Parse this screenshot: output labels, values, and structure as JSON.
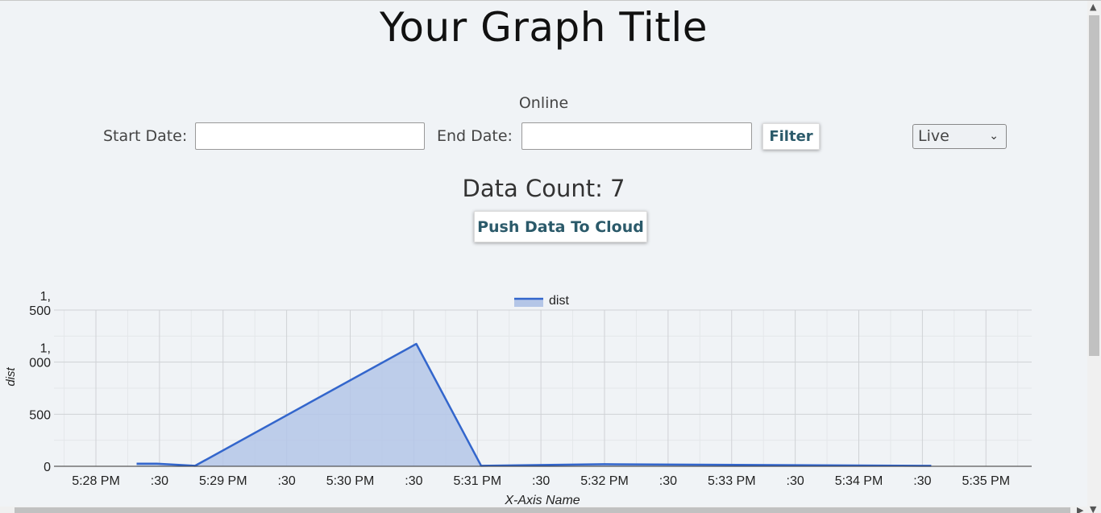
{
  "page": {
    "title": "Your Graph Title",
    "status": "Online"
  },
  "filter": {
    "start_label": "Start Date:",
    "start_value": "",
    "end_label": "End Date:",
    "end_value": "",
    "filter_label": "Filter",
    "mode_selected": "Live"
  },
  "summary": {
    "data_count": "Data Count: 7",
    "push_label": "Push Data To Cloud"
  },
  "colors": {
    "series_line": "#3366cc",
    "series_fill": "#b4c6e7"
  },
  "icons": {
    "select_arrow": "chevron-down-icon",
    "scroll_up": "caret-up-icon",
    "scroll_down": "caret-down-icon",
    "scroll_right": "caret-right-icon"
  },
  "chart_data": {
    "type": "area",
    "title": "",
    "xlabel": "X-Axis Name",
    "ylabel": "dist",
    "legend_position": "top",
    "grid": true,
    "x_start": "5:28 PM",
    "x_end": "5:35 PM",
    "xlim_minutes": [
      0,
      7.7
    ],
    "ylim": [
      0,
      1500
    ],
    "ytick_values": [
      0,
      500,
      1000,
      1500
    ],
    "ytick_labels": [
      [
        "0"
      ],
      [
        "500"
      ],
      [
        "1,",
        "000"
      ],
      [
        "1,",
        "500"
      ]
    ],
    "xtick_labels": [
      "5:28 PM",
      ":30",
      "5:29 PM",
      ":30",
      "5:30 PM",
      ":30",
      "5:31 PM",
      ":30",
      "5:32 PM",
      ":30",
      "5:33 PM",
      ":30",
      "5:34 PM",
      ":30",
      "5:35 PM"
    ],
    "xtick_minutes": [
      0,
      0.5,
      1,
      1.5,
      2,
      2.5,
      3,
      3.5,
      4,
      4.5,
      5,
      5.5,
      6,
      6.5,
      7
    ],
    "series": [
      {
        "name": "dist",
        "points": [
          {
            "x": "5:28:19 PM",
            "minutes": 0.32,
            "y": 25
          },
          {
            "x": "5:28:29 PM",
            "minutes": 0.48,
            "y": 25
          },
          {
            "x": "5:28:47 PM",
            "minutes": 0.78,
            "y": 5
          },
          {
            "x": "5:30:31 PM",
            "minutes": 2.52,
            "y": 1175
          },
          {
            "x": "5:31:02 PM",
            "minutes": 3.03,
            "y": 5
          },
          {
            "x": "5:32:00 PM",
            "minutes": 4.0,
            "y": 20
          },
          {
            "x": "5:34:34 PM",
            "minutes": 6.57,
            "y": 5
          }
        ]
      }
    ]
  }
}
